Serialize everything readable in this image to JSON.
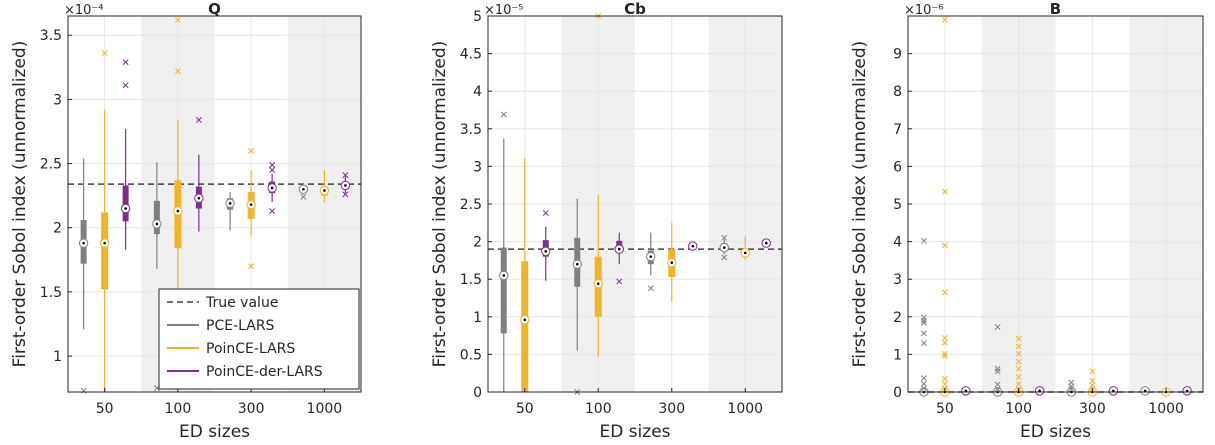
{
  "colors": {
    "PCE-LARS": "#808080",
    "PoinCE-LARS": "#f0b429",
    "PoinCE-der-LARS": "#7e2f8e",
    "shade": "#f0f0f0",
    "grid": "#e6e6e6",
    "axis": "#262626"
  },
  "legend": {
    "placement": "bottom-right of first panel",
    "items": [
      {
        "label": "True value",
        "style": "dashed",
        "color": "#404040"
      },
      {
        "label": "PCE-LARS",
        "color": "#808080"
      },
      {
        "label": "PoinCE-LARS",
        "color": "#f0b429"
      },
      {
        "label": "PoinCE-der-LARS",
        "color": "#7e2f8e"
      }
    ]
  },
  "chart_data": [
    {
      "type": "box",
      "title": "Q",
      "exponent": "×10⁻⁴",
      "xlabel": "ED sizes",
      "ylabel": "First-order Sobol index (unnormalized)",
      "categories": [
        "50",
        "100",
        "300",
        "1000"
      ],
      "ylim": [
        0.72,
        3.65
      ],
      "yticks": [
        1,
        1.5,
        2,
        2.5,
        3,
        3.5
      ],
      "ytick_labels": [
        "1",
        "1.5",
        "2",
        "2.5",
        "3",
        "3.5"
      ],
      "grid": true,
      "true_value": 2.34,
      "series": [
        {
          "name": "PCE-LARS",
          "boxes": [
            {
              "wlo": 1.21,
              "q1": 1.72,
              "med": 1.88,
              "q3": 2.06,
              "whi": 2.54,
              "outliers": [
                0.73
              ]
            },
            {
              "wlo": 1.68,
              "q1": 1.95,
              "med": 2.03,
              "q3": 2.21,
              "whi": 2.51,
              "outliers": [
                0.75
              ]
            },
            {
              "wlo": 1.98,
              "q1": 2.14,
              "med": 2.19,
              "q3": 2.23,
              "whi": 2.28,
              "outliers": []
            },
            {
              "wlo": 2.26,
              "q1": 2.29,
              "med": 2.3,
              "q3": 2.32,
              "whi": 2.34,
              "outliers": [
                2.24
              ]
            }
          ]
        },
        {
          "name": "PoinCE-LARS",
          "boxes": [
            {
              "wlo": 0.72,
              "q1": 1.52,
              "med": 1.88,
              "q3": 2.12,
              "whi": 2.92,
              "outliers": [
                3.36
              ]
            },
            {
              "wlo": 1.43,
              "q1": 1.84,
              "med": 2.13,
              "q3": 2.37,
              "whi": 2.84,
              "outliers": [
                3.62,
                3.22
              ]
            },
            {
              "wlo": 1.93,
              "q1": 2.07,
              "med": 2.18,
              "q3": 2.28,
              "whi": 2.45,
              "outliers": [
                2.6,
                1.7
              ]
            },
            {
              "wlo": 2.2,
              "q1": 2.25,
              "med": 2.29,
              "q3": 2.32,
              "whi": 2.45,
              "outliers": []
            }
          ]
        },
        {
          "name": "PoinCE-der-LARS",
          "boxes": [
            {
              "wlo": 1.83,
              "q1": 2.05,
              "med": 2.15,
              "q3": 2.33,
              "whi": 2.77,
              "outliers": [
                3.29,
                3.11
              ]
            },
            {
              "wlo": 1.97,
              "q1": 2.15,
              "med": 2.23,
              "q3": 2.32,
              "whi": 2.57,
              "outliers": [
                2.84
              ]
            },
            {
              "wlo": 2.2,
              "q1": 2.27,
              "med": 2.31,
              "q3": 2.36,
              "whi": 2.42,
              "outliers": [
                2.49,
                2.45,
                2.13
              ]
            },
            {
              "wlo": 2.27,
              "q1": 2.3,
              "med": 2.33,
              "q3": 2.36,
              "whi": 2.4,
              "outliers": [
                2.41,
                2.26
              ]
            }
          ]
        }
      ]
    },
    {
      "type": "box",
      "title": "Cb",
      "exponent": "×10⁻⁵",
      "xlabel": "ED sizes",
      "ylabel": "First-order Sobol index (unnormalized)",
      "categories": [
        "50",
        "100",
        "300",
        "1000"
      ],
      "ylim": [
        0,
        5
      ],
      "yticks": [
        0,
        0.5,
        1,
        1.5,
        2,
        2.5,
        3,
        3.5,
        4,
        4.5,
        5
      ],
      "ytick_labels": [
        "0",
        "0.5",
        "1",
        "1.5",
        "2",
        "2.5",
        "3",
        "3.5",
        "4",
        "4.5",
        "5"
      ],
      "grid": true,
      "true_value": 1.9,
      "series": [
        {
          "name": "PCE-LARS",
          "boxes": [
            {
              "wlo": 0,
              "q1": 0.78,
              "med": 1.55,
              "q3": 1.92,
              "whi": 3.37,
              "outliers": [
                3.69
              ]
            },
            {
              "wlo": 0.55,
              "q1": 1.4,
              "med": 1.7,
              "q3": 2.05,
              "whi": 2.57,
              "outliers": [
                0
              ]
            },
            {
              "wlo": 1.55,
              "q1": 1.7,
              "med": 1.8,
              "q3": 1.88,
              "whi": 2.12,
              "outliers": [
                1.38
              ]
            },
            {
              "wlo": 1.83,
              "q1": 1.87,
              "med": 1.92,
              "q3": 1.98,
              "whi": 2.03,
              "outliers": [
                2.05,
                1.79
              ]
            }
          ]
        },
        {
          "name": "PoinCE-LARS",
          "boxes": [
            {
              "wlo": 0,
              "q1": 0,
              "med": 0.96,
              "q3": 1.74,
              "whi": 3.11,
              "outliers": []
            },
            {
              "wlo": 0.47,
              "q1": 1.0,
              "med": 1.44,
              "q3": 1.8,
              "whi": 2.62,
              "outliers": [
                5.04
              ]
            },
            {
              "wlo": 1.2,
              "q1": 1.53,
              "med": 1.72,
              "q3": 1.9,
              "whi": 2.25,
              "outliers": []
            },
            {
              "wlo": 1.76,
              "q1": 1.81,
              "med": 1.85,
              "q3": 1.9,
              "whi": 2.07,
              "outliers": []
            }
          ]
        },
        {
          "name": "PoinCE-der-LARS",
          "boxes": [
            {
              "wlo": 1.48,
              "q1": 1.8,
              "med": 1.87,
              "q3": 2.02,
              "whi": 2.2,
              "outliers": [
                2.38
              ]
            },
            {
              "wlo": 1.7,
              "q1": 1.85,
              "med": 1.9,
              "q3": 2.01,
              "whi": 2.12,
              "outliers": [
                1.47
              ]
            },
            {
              "wlo": 1.9,
              "q1": 1.92,
              "med": 1.94,
              "q3": 1.97,
              "whi": 1.99,
              "outliers": []
            },
            {
              "wlo": 1.94,
              "q1": 1.96,
              "med": 1.98,
              "q3": 2.0,
              "whi": 2.02,
              "outliers": []
            }
          ]
        }
      ]
    },
    {
      "type": "box",
      "title": "B",
      "exponent": "×10⁻⁶",
      "xlabel": "ED sizes",
      "ylabel": "First-order Sobol index (unnormalized)",
      "categories": [
        "50",
        "100",
        "300",
        "1000"
      ],
      "ylim": [
        0,
        10
      ],
      "yticks": [
        0,
        1,
        2,
        3,
        4,
        5,
        6,
        7,
        8,
        9
      ],
      "ytick_labels": [
        "0",
        "1",
        "2",
        "3",
        "4",
        "5",
        "6",
        "7",
        "8",
        "9"
      ],
      "grid": true,
      "true_value": 0,
      "series": [
        {
          "name": "PCE-LARS",
          "boxes": [
            {
              "wlo": 0,
              "q1": 0,
              "med": 0.0,
              "q3": 0,
              "whi": 0,
              "outliers": [
                4.02,
                1.98,
                1.9,
                1.84,
                1.56,
                1.3,
                0.37,
                0.22,
                0.1
              ]
            },
            {
              "wlo": 0,
              "q1": 0,
              "med": 0.0,
              "q3": 0,
              "whi": 0,
              "outliers": [
                1.73,
                0.62,
                0.55,
                0.2,
                0.08
              ]
            },
            {
              "wlo": 0,
              "q1": 0,
              "med": 0.0,
              "q3": 0,
              "whi": 0,
              "outliers": [
                0.25,
                0.15,
                0.08
              ]
            },
            {
              "wlo": 0,
              "q1": 0,
              "med": 0.03,
              "q3": 0.05,
              "whi": 0.06,
              "outliers": []
            }
          ]
        },
        {
          "name": "PoinCE-LARS",
          "boxes": [
            {
              "wlo": 0,
              "q1": 0,
              "med": 0.0,
              "q3": 0,
              "whi": 0,
              "outliers": [
                9.9,
                5.33,
                3.9,
                2.65,
                1.44,
                1.31,
                1.02,
                0.96,
                0.36,
                0.21,
                0.08
              ]
            },
            {
              "wlo": 0,
              "q1": 0,
              "med": 0.0,
              "q3": 0,
              "whi": 0,
              "outliers": [
                1.42,
                1.21,
                1.02,
                0.81,
                0.62,
                0.4,
                0.21,
                0.08
              ]
            },
            {
              "wlo": 0,
              "q1": 0,
              "med": 0.0,
              "q3": 0,
              "whi": 0,
              "outliers": [
                0.55,
                0.3,
                0.18,
                0.08
              ]
            },
            {
              "wlo": 0,
              "q1": 0,
              "med": 0.0,
              "q3": 0,
              "whi": 0.02,
              "outliers": []
            }
          ]
        },
        {
          "name": "PoinCE-der-LARS",
          "boxes": [
            {
              "wlo": 0,
              "q1": 0,
              "med": 0.03,
              "q3": 0.05,
              "whi": 0.06,
              "outliers": []
            },
            {
              "wlo": 0,
              "q1": 0,
              "med": 0.03,
              "q3": 0.05,
              "whi": 0.06,
              "outliers": []
            },
            {
              "wlo": 0,
              "q1": 0,
              "med": 0.03,
              "q3": 0.05,
              "whi": 0.06,
              "outliers": []
            },
            {
              "wlo": 0,
              "q1": 0,
              "med": 0.03,
              "q3": 0.05,
              "whi": 0.06,
              "outliers": []
            }
          ]
        }
      ]
    }
  ]
}
